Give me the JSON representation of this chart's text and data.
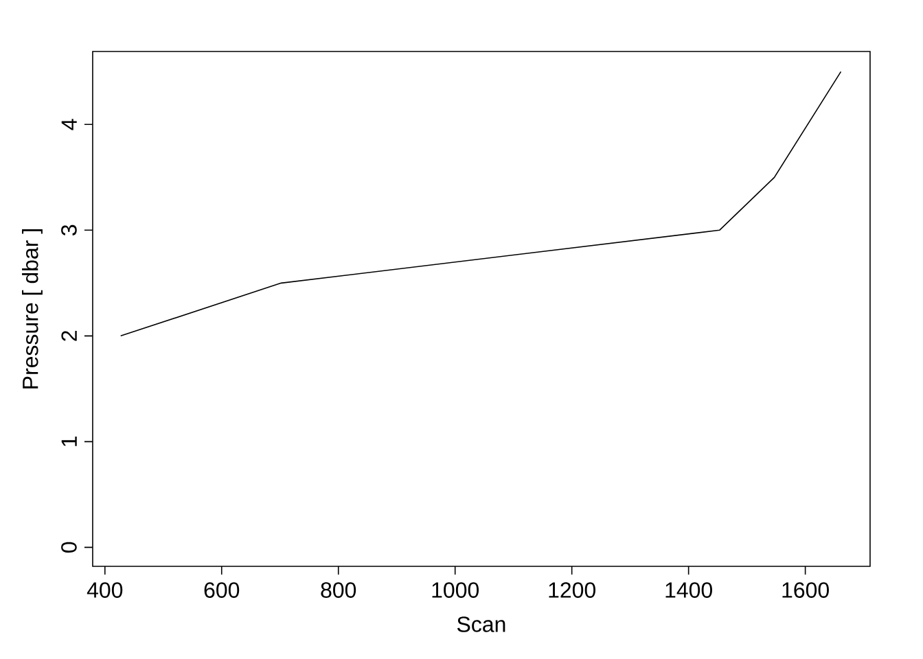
{
  "chart_data": {
    "type": "line",
    "xlabel": "Scan",
    "ylabel": "Pressure [ dbar ]",
    "x": [
      427,
      702,
      1453,
      1547,
      1661
    ],
    "values": [
      2.0,
      2.5,
      3.0,
      3.5,
      4.5
    ],
    "color": "#000000",
    "line_style": "solid",
    "xlim": [
      379,
      1711
    ],
    "ylim": [
      -0.18,
      4.69
    ],
    "xticks": [
      400,
      600,
      800,
      1000,
      1200,
      1400,
      1600
    ],
    "yticks": [
      0,
      1,
      2,
      3,
      4
    ],
    "grid": false
  }
}
